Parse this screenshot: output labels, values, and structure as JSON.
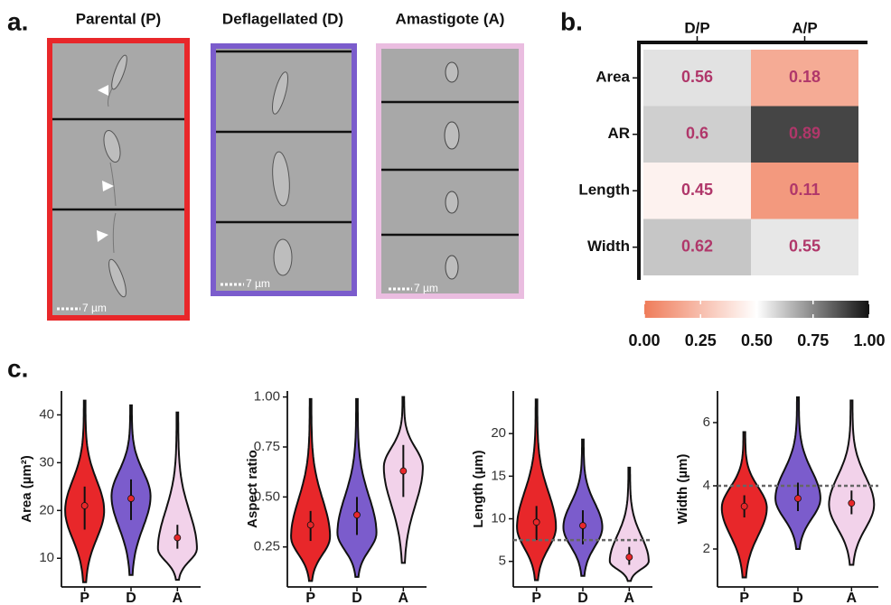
{
  "panel_a": {
    "label": "a.",
    "columns": [
      {
        "title": "Parental (P)",
        "scale_bar": "7 µm"
      },
      {
        "title": "Deflagellated (D)",
        "scale_bar": "7 µm"
      },
      {
        "title": "Amastigote (A)",
        "scale_bar": "7 µm"
      }
    ]
  },
  "panel_b_label": "b.",
  "panel_c_label": "c.",
  "chart_data": [
    {
      "type": "heatmap",
      "x": [
        "D/P",
        "A/P"
      ],
      "y": [
        "Area",
        "AR",
        "Length",
        "Width"
      ],
      "values": [
        [
          0.56,
          0.18
        ],
        [
          0.6,
          0.89
        ],
        [
          0.45,
          0.11
        ],
        [
          0.62,
          0.55
        ]
      ],
      "colorscale": [
        "#ef7c5a",
        "#ffffff",
        "#111111"
      ],
      "clim": [
        0,
        1
      ],
      "label_color": "#b0376a",
      "cticks": [
        {
          "value": 0,
          "label": "0.00"
        },
        0.25,
        {
          "value": 0.5,
          "label": "0.50"
        },
        0.75,
        {
          "value": 1,
          "label": "1.00"
        }
      ]
    },
    {
      "type": "violin",
      "ylabel": "Area (µm²)",
      "categories": [
        "P",
        "D",
        "A"
      ],
      "colors": [
        "#e8272a",
        "#7b5ccc",
        "#f2d2ea"
      ],
      "ylim": [
        4,
        45
      ],
      "yticks": [
        10,
        20,
        30,
        40
      ],
      "min": [
        5,
        6.5,
        5.5
      ],
      "max": [
        43,
        42,
        40.5
      ],
      "mode": [
        20,
        23,
        12
      ],
      "mean": [
        21,
        22.5,
        14.3
      ],
      "err_low": [
        16,
        18,
        12
      ],
      "err_high": [
        25,
        26.5,
        17
      ]
    },
    {
      "type": "violin",
      "ylabel": "Aspect ratio",
      "categories": [
        "P",
        "D",
        "A"
      ],
      "colors": [
        "#e8272a",
        "#7b5ccc",
        "#f2d2ea"
      ],
      "ylim": [
        0.05,
        1.03
      ],
      "yticks": [
        0.25,
        {
          "value": 0.5,
          "label": "0.50"
        },
        0.75,
        {
          "value": 1,
          "label": "1.00"
        }
      ],
      "min": [
        0.08,
        0.1,
        0.17
      ],
      "max": [
        0.99,
        0.99,
        1.0
      ],
      "mode": [
        0.3,
        0.32,
        0.65
      ],
      "mean": [
        0.36,
        0.41,
        0.63
      ],
      "err_low": [
        0.28,
        0.31,
        0.5
      ],
      "err_high": [
        0.43,
        0.5,
        0.76
      ]
    },
    {
      "type": "violin",
      "ylabel": "Length (µm)",
      "categories": [
        "P",
        "D",
        "A"
      ],
      "colors": [
        "#e8272a",
        "#7b5ccc",
        "#f2d2ea"
      ],
      "ylim": [
        2,
        25
      ],
      "yticks": [
        5,
        10,
        15,
        20
      ],
      "ref_line": 7.5,
      "min": [
        2.8,
        3.3,
        2.7
      ],
      "max": [
        24,
        19.3,
        16
      ],
      "mode": [
        9,
        9,
        5
      ],
      "mean": [
        9.6,
        9.2,
        5.5
      ],
      "err_low": [
        7.5,
        7,
        4.6
      ],
      "err_high": [
        11.5,
        11,
        6.7
      ]
    },
    {
      "type": "violin",
      "ylabel": "Width (µm)",
      "categories": [
        "P",
        "D",
        "A"
      ],
      "colors": [
        "#e8272a",
        "#7b5ccc",
        "#f2d2ea"
      ],
      "ylim": [
        0.8,
        7
      ],
      "yticks": [
        2,
        4,
        6
      ],
      "ref_line": 4,
      "min": [
        1.1,
        2,
        1.5
      ],
      "max": [
        5.7,
        6.8,
        6.7
      ],
      "mode": [
        3.3,
        3.6,
        3.4
      ],
      "mean": [
        3.35,
        3.6,
        3.45
      ],
      "err_low": [
        3.0,
        3.2,
        3.1
      ],
      "err_high": [
        3.7,
        4.1,
        3.85
      ]
    }
  ]
}
